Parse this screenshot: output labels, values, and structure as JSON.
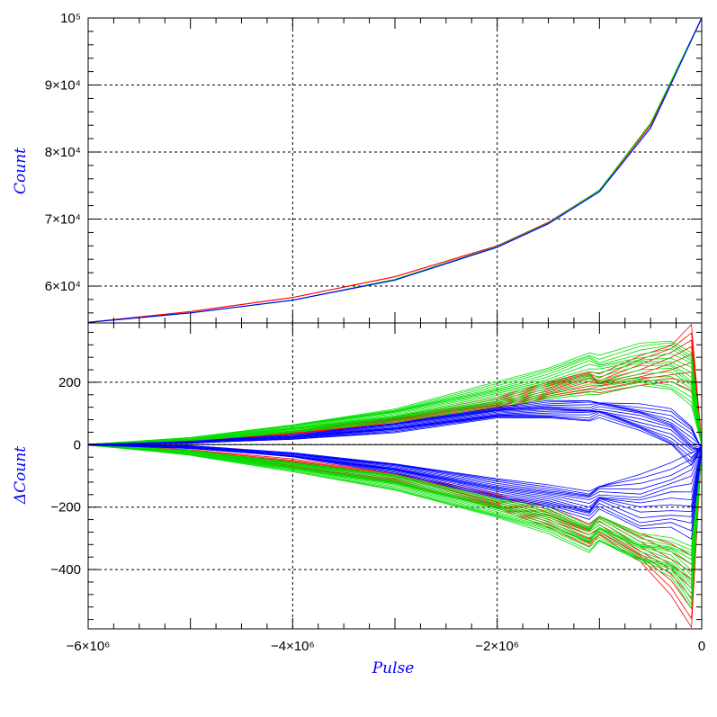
{
  "chart_data": [
    {
      "type": "line",
      "panel": "top",
      "ylabel": "Count",
      "xlim": [
        -6000000,
        0
      ],
      "ylim": [
        54500,
        100000
      ],
      "yticks": [
        {
          "value": 60000,
          "label": "6×10⁴"
        },
        {
          "value": 70000,
          "label": "7×10⁴"
        },
        {
          "value": 80000,
          "label": "8×10⁴"
        },
        {
          "value": 90000,
          "label": "9×10⁴"
        },
        {
          "value": 100000,
          "label": "10⁵"
        }
      ],
      "grid": true,
      "colors": [
        "#0000ff",
        "#00e000",
        "#ff0000"
      ],
      "series": [
        {
          "color": "#ff0000",
          "x": [
            -6000000,
            -5000000,
            -4000000,
            -3000000,
            -2000000,
            -1500000,
            -1000000,
            -500000,
            0
          ],
          "values": [
            54600,
            56200,
            58300,
            61400,
            66000,
            69500,
            74300,
            84000,
            100000
          ]
        },
        {
          "color": "#00e000",
          "x": [
            -6000000,
            -5000000,
            -4000000,
            -3000000,
            -2000000,
            -1500000,
            -1000000,
            -500000,
            0
          ],
          "values": [
            54600,
            56000,
            57900,
            61000,
            65900,
            69400,
            74300,
            84300,
            100000
          ]
        },
        {
          "color": "#0000ff",
          "x": [
            -6000000,
            -5000000,
            -4000000,
            -3000000,
            -2000000,
            -1500000,
            -1000000,
            -500000,
            0
          ],
          "values": [
            54600,
            56000,
            57900,
            60900,
            65800,
            69300,
            74100,
            83600,
            100000
          ]
        }
      ]
    },
    {
      "type": "line",
      "panel": "bottom",
      "xlabel": "Pulse",
      "ylabel": "ΔCount",
      "xlim": [
        -6000000,
        0
      ],
      "ylim": [
        -590,
        390
      ],
      "xticks": [
        {
          "value": -6000000,
          "label": "−6×10⁶"
        },
        {
          "value": -4000000,
          "label": "−4×10⁶"
        },
        {
          "value": -2000000,
          "label": "−2×10⁶"
        },
        {
          "value": 0,
          "label": "0"
        }
      ],
      "yticks": [
        {
          "value": -400,
          "label": "−400"
        },
        {
          "value": -200,
          "label": "−200"
        },
        {
          "value": 0,
          "label": "0"
        },
        {
          "value": 200,
          "label": "200"
        }
      ],
      "grid": true,
      "zero_line": true,
      "colors": [
        "#0000ff",
        "#00e000",
        "#ff0000"
      ],
      "bands": [
        {
          "color": "#0000ff",
          "count": 14,
          "x": [
            -6000000,
            -5000000,
            -4000000,
            -3000000,
            -2000000,
            -1500000,
            -1100000,
            -1000000,
            -600000,
            -300000,
            -100000,
            0
          ],
          "inner": [
            0,
            5,
            18,
            40,
            85,
            85,
            80,
            90,
            40,
            0,
            -60,
            -10
          ],
          "outer": [
            0,
            10,
            30,
            70,
            120,
            140,
            140,
            140,
            130,
            110,
            60,
            -10
          ],
          "inner_neg": [
            0,
            -5,
            -25,
            -60,
            -110,
            -130,
            -145,
            -130,
            -100,
            -60,
            -20,
            -10
          ],
          "outer_neg": [
            0,
            -12,
            -40,
            -90,
            -170,
            -200,
            -240,
            -200,
            -270,
            -270,
            -300,
            -10
          ]
        },
        {
          "color": "#00e000",
          "count": 16,
          "x": [
            -6000000,
            -5000000,
            -4000000,
            -3000000,
            -2000000,
            -1500000,
            -1100000,
            -1000000,
            -600000,
            -300000,
            -100000,
            0
          ],
          "inner": [
            0,
            10,
            40,
            75,
            120,
            145,
            165,
            165,
            185,
            175,
            130,
            0
          ],
          "outer": [
            0,
            22,
            65,
            115,
            200,
            245,
            300,
            285,
            320,
            335,
            300,
            0
          ],
          "inner_neg": [
            0,
            -20,
            -55,
            -95,
            -175,
            -200,
            -255,
            -225,
            -290,
            -300,
            -320,
            -10
          ],
          "outer_neg": [
            0,
            -35,
            -85,
            -145,
            -235,
            -285,
            -340,
            -310,
            -380,
            -420,
            -520,
            -10
          ]
        },
        {
          "color": "#ff0000",
          "count": 9,
          "x": [
            -6000000,
            -5000000,
            -4000000,
            -3000000,
            -2000000,
            -1500000,
            -1100000,
            -1000000,
            -600000,
            -300000,
            -100000,
            0
          ],
          "inner": [
            0,
            8,
            35,
            70,
            110,
            150,
            175,
            170,
            185,
            200,
            180,
            0
          ],
          "outer": [
            0,
            15,
            45,
            90,
            150,
            200,
            240,
            225,
            280,
            320,
            390,
            0
          ],
          "inner_neg": [
            0,
            -18,
            -45,
            -90,
            -160,
            -200,
            -250,
            -225,
            -290,
            -320,
            -350,
            -10
          ],
          "outer_neg": [
            0,
            -28,
            -70,
            -120,
            -205,
            -265,
            -320,
            -290,
            -380,
            -480,
            -580,
            -10
          ]
        }
      ]
    }
  ]
}
